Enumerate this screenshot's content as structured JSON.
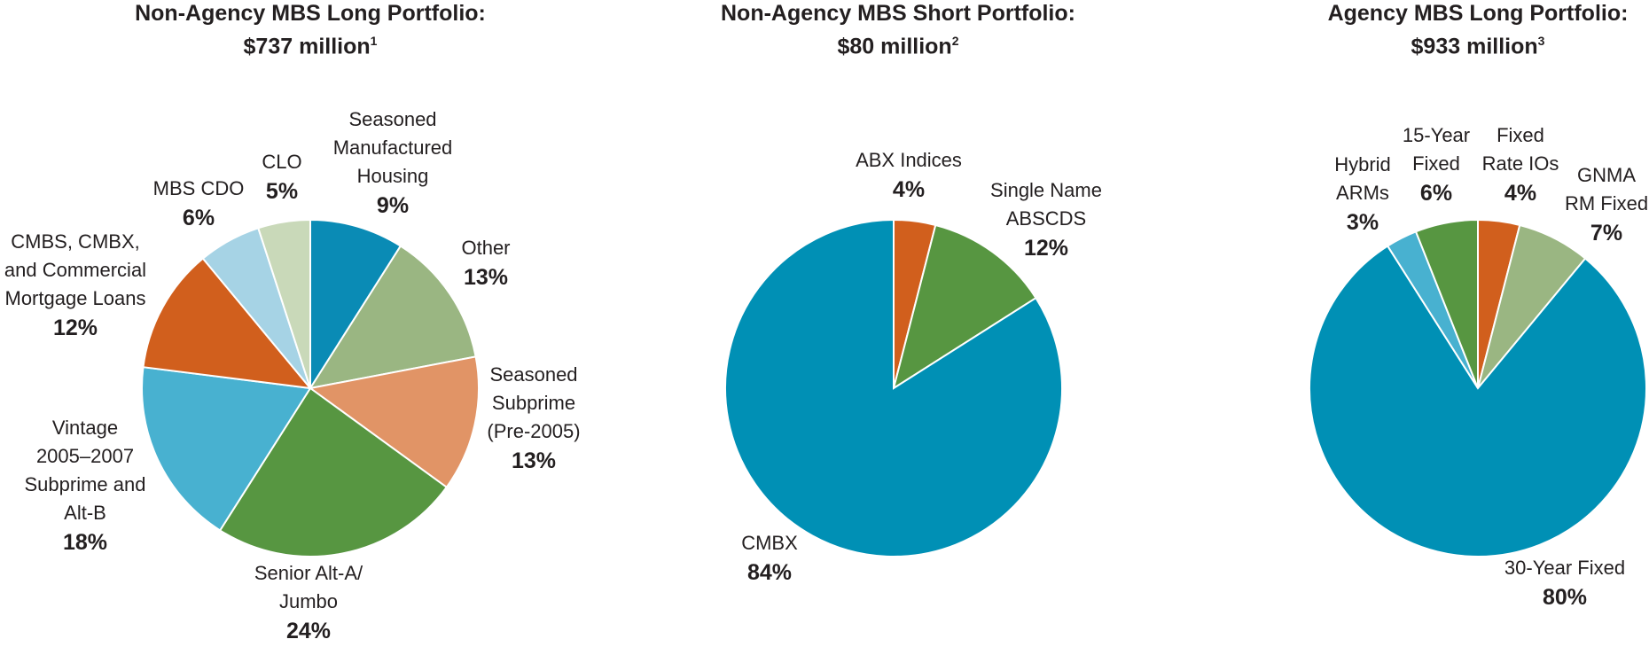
{
  "chart_data": [
    {
      "type": "pie",
      "title": "Non-Agency MBS Long Portfolio:",
      "subtitle": "$737 million",
      "footnote": "1",
      "slices": [
        {
          "label": "Seasoned Manufactured Housing",
          "label_lines": [
            "Seasoned",
            "Manufactured",
            "Housing"
          ],
          "value": 9,
          "display": "9%",
          "color": "#0a8bb5"
        },
        {
          "label": "Other",
          "label_lines": [
            "Other"
          ],
          "value": 13,
          "display": "13%",
          "color": "#9ab682"
        },
        {
          "label": "Seasoned Subprime (Pre-2005)",
          "label_lines": [
            "Seasoned",
            "Subprime",
            "(Pre-2005)"
          ],
          "value": 13,
          "display": "13%",
          "color": "#e19466"
        },
        {
          "label": "Senior Alt-A/ Jumbo",
          "label_lines": [
            "Senior Alt-A/",
            "Jumbo"
          ],
          "value": 24,
          "display": "24%",
          "color": "#579641"
        },
        {
          "label": "Vintage 2005–2007 Subprime and Alt-B",
          "label_lines": [
            "Vintage",
            "2005–2007",
            "Subprime and",
            "Alt-B"
          ],
          "value": 18,
          "display": "18%",
          "color": "#48b1d0"
        },
        {
          "label": "CMBS, CMBX, and Commercial Mortgage Loans",
          "label_lines": [
            "CMBS, CMBX,",
            "and Commercial",
            "Mortgage Loans"
          ],
          "value": 12,
          "display": "12%",
          "color": "#d15f1d"
        },
        {
          "label": "MBS CDO",
          "label_lines": [
            "MBS CDO"
          ],
          "value": 6,
          "display": "6%",
          "color": "#a6d3e5"
        },
        {
          "label": "CLO",
          "label_lines": [
            "CLO"
          ],
          "value": 5,
          "display": "5%",
          "color": "#c9d9b9"
        }
      ]
    },
    {
      "type": "pie",
      "title": "Non-Agency MBS Short Portfolio:",
      "subtitle": "$80 million",
      "footnote": "2",
      "slices": [
        {
          "label": "ABX Indices",
          "label_lines": [
            "ABX Indices"
          ],
          "value": 4,
          "display": "4%",
          "color": "#d15f1d"
        },
        {
          "label": "Single Name ABSCDS",
          "label_lines": [
            "Single Name",
            "ABSCDS"
          ],
          "value": 12,
          "display": "12%",
          "color": "#579641"
        },
        {
          "label": "CMBX",
          "label_lines": [
            "CMBX"
          ],
          "value": 84,
          "display": "84%",
          "color": "#0090b5"
        }
      ]
    },
    {
      "type": "pie",
      "title": "Agency MBS Long Portfolio:",
      "subtitle": "$933 million",
      "footnote": "3",
      "slices": [
        {
          "label": "Fixed Rate IOs",
          "label_lines": [
            "Fixed",
            "Rate IOs"
          ],
          "value": 4,
          "display": "4%",
          "color": "#d15f1d"
        },
        {
          "label": "GNMA RM Fixed",
          "label_lines": [
            "GNMA",
            "RM Fixed"
          ],
          "value": 7,
          "display": "7%",
          "color": "#9ab682"
        },
        {
          "label": "30-Year Fixed",
          "label_lines": [
            "30-Year Fixed"
          ],
          "value": 80,
          "display": "80%",
          "color": "#0090b5"
        },
        {
          "label": "Hybrid ARMs",
          "label_lines": [
            "Hybrid",
            "ARMs"
          ],
          "value": 3,
          "display": "3%",
          "color": "#48b1d0"
        },
        {
          "label": "15-Year Fixed",
          "label_lines": [
            "15-Year",
            "Fixed"
          ],
          "value": 6,
          "display": "6%",
          "color": "#579641"
        }
      ]
    }
  ]
}
